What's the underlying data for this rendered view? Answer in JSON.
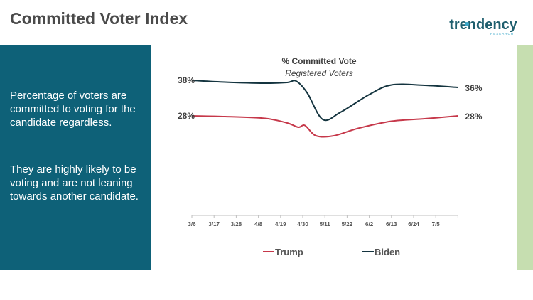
{
  "slide": {
    "title": "Committed Voter Index"
  },
  "logo": {
    "text": "trendency",
    "subtext": "RESEARCH",
    "colors": {
      "text": "#1f5f6e",
      "accent": "#3aa7c9"
    }
  },
  "panel": {
    "paragraph1": "Percentage of voters are committed to voting for the candidate regardless.",
    "paragraph2": "They are highly likely to be voting and are not leaning towards another candidate."
  },
  "colors": {
    "panel": "#0e6178",
    "side_bar": "#c6deb0",
    "title": "#4a4a4a",
    "trump": "#c6384a",
    "biden": "#14343f"
  },
  "chart_data": {
    "type": "line",
    "title": "% Committed Vote",
    "subtitle": "Registered Voters",
    "xlabel": "",
    "ylabel": "",
    "categories": [
      "3/6",
      "3/17",
      "3/28",
      "4/8",
      "4/19",
      "4/30",
      "5/11",
      "5/22",
      "6/2",
      "6/13",
      "6/24",
      "7/5"
    ],
    "ylim": [
      0,
      50
    ],
    "y_axis_visible": false,
    "grid": false,
    "legend_position": "bottom",
    "series": [
      {
        "name": "Trump",
        "color": "#c6384a",
        "points": [
          [
            0,
            28
          ],
          [
            1.5,
            27.8
          ],
          [
            3.3,
            27.3
          ],
          [
            4.3,
            26
          ],
          [
            4.8,
            24.8
          ],
          [
            5.1,
            25.3
          ],
          [
            5.6,
            22.4
          ],
          [
            6.4,
            22.4
          ],
          [
            7.5,
            24.5
          ],
          [
            9,
            26.5
          ],
          [
            10.5,
            27.2
          ],
          [
            12,
            28
          ]
        ],
        "start_label": "28%",
        "end_label": "28%"
      },
      {
        "name": "Biden",
        "color": "#14343f",
        "points": [
          [
            0,
            38
          ],
          [
            1.5,
            37.5
          ],
          [
            3.3,
            37.2
          ],
          [
            4.3,
            37.4
          ],
          [
            4.7,
            37.8
          ],
          [
            5.2,
            34.5
          ],
          [
            5.9,
            27
          ],
          [
            6.7,
            29
          ],
          [
            8,
            34
          ],
          [
            9,
            36.7
          ],
          [
            10.5,
            36.6
          ],
          [
            12,
            36
          ]
        ],
        "start_label": "38%",
        "end_label": "36%"
      }
    ]
  }
}
